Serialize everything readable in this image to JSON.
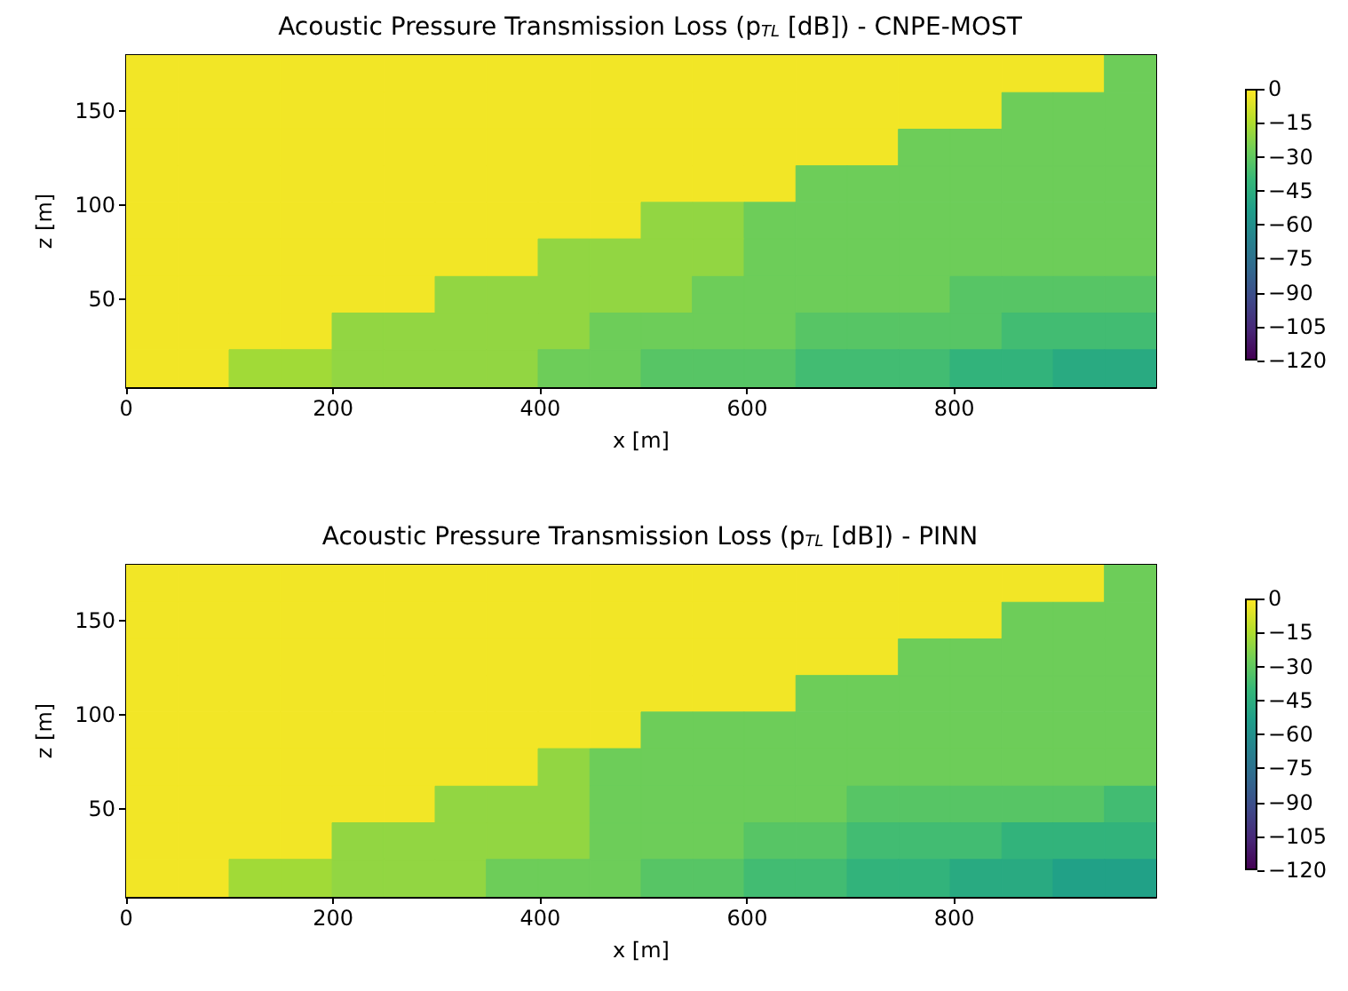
{
  "chart_data": [
    {
      "type": "heatmap",
      "title": "Acoustic Pressure Transmission Loss (p$_{TL}$ [dB]) - CNPE-MOST",
      "xlabel": "x [m]",
      "ylabel": "z [m]",
      "x": [
        25,
        75,
        124,
        174,
        224,
        274,
        323,
        373,
        423,
        473,
        522,
        572,
        622,
        672,
        721,
        771,
        821,
        871,
        920,
        970
      ],
      "y": [
        170,
        150,
        131,
        111,
        92,
        72,
        52,
        33,
        13
      ],
      "cells": [
        [
          -2,
          -2,
          -2,
          -2,
          -2,
          -2,
          -2,
          -2,
          -2,
          -2,
          -2,
          -2,
          -2,
          -2,
          -2,
          -2,
          -2,
          -2,
          -2,
          -27
        ],
        [
          -2,
          -2,
          -2,
          -2,
          -2,
          -2,
          -2,
          -2,
          -2,
          -2,
          -2,
          -2,
          -2,
          -2,
          -2,
          -2,
          -2,
          -27,
          -27,
          -27
        ],
        [
          -2,
          -2,
          -2,
          -2,
          -2,
          -2,
          -2,
          -2,
          -2,
          -2,
          -2,
          -2,
          -2,
          -2,
          -2,
          -27,
          -27,
          -27,
          -27,
          -27
        ],
        [
          -2,
          -2,
          -2,
          -2,
          -2,
          -2,
          -2,
          -2,
          -2,
          -2,
          -2,
          -2,
          -2,
          -27,
          -27,
          -27,
          -27,
          -27,
          -27,
          -27
        ],
        [
          -2,
          -2,
          -2,
          -2,
          -2,
          -2,
          -2,
          -2,
          -2,
          -2,
          -20,
          -20,
          -27,
          -27,
          -27,
          -27,
          -27,
          -27,
          -27,
          -27
        ],
        [
          -2,
          -2,
          -2,
          -2,
          -2,
          -2,
          -2,
          -2,
          -20,
          -20,
          -20,
          -20,
          -27,
          -27,
          -27,
          -27,
          -27,
          -27,
          -27,
          -27
        ],
        [
          -2,
          -2,
          -2,
          -2,
          -2,
          -2,
          -20,
          -20,
          -20,
          -20,
          -20,
          -27,
          -27,
          -27,
          -27,
          -27,
          -32,
          -32,
          -32,
          -32
        ],
        [
          -2,
          -2,
          -2,
          -2,
          -20,
          -20,
          -20,
          -20,
          -20,
          -27,
          -27,
          -27,
          -27,
          -32,
          -32,
          -32,
          -32,
          -37,
          -37,
          -37
        ],
        [
          -2,
          -2,
          -17,
          -17,
          -20,
          -20,
          -20,
          -20,
          -27,
          -27,
          -32,
          -32,
          -32,
          -37,
          -37,
          -37,
          -42,
          -42,
          -47,
          -47
        ]
      ],
      "clim": [
        -120,
        0
      ],
      "cticks": [
        0,
        {
          "value": -15,
          "label": "−15"
        },
        {
          "value": -30,
          "label": "−30"
        },
        {
          "value": -45,
          "label": "−45"
        },
        {
          "value": -60,
          "label": "−60"
        },
        {
          "value": -75,
          "label": "−75"
        },
        {
          "value": -90,
          "label": "−90"
        },
        {
          "value": -105,
          "label": "−105"
        },
        {
          "value": -120,
          "label": "−120"
        }
      ],
      "xlim": [
        0,
        995
      ],
      "xticks": [
        0,
        200,
        400,
        600,
        800
      ],
      "ylim": [
        3,
        180
      ],
      "yticks": [
        50,
        100,
        150
      ]
    },
    {
      "type": "heatmap",
      "title": "Acoustic Pressure Transmission Loss (p$_{TL}$ [dB]) - PINN",
      "xlabel": "x [m]",
      "ylabel": "z [m]",
      "x": [
        25,
        75,
        124,
        174,
        224,
        274,
        323,
        373,
        423,
        473,
        522,
        572,
        622,
        672,
        721,
        771,
        821,
        871,
        920,
        970
      ],
      "y": [
        170,
        150,
        131,
        111,
        92,
        72,
        52,
        33,
        13
      ],
      "cells": [
        [
          -2,
          -2,
          -2,
          -2,
          -2,
          -2,
          -2,
          -2,
          -2,
          -2,
          -2,
          -2,
          -2,
          -2,
          -2,
          -2,
          -2,
          -2,
          -2,
          -27
        ],
        [
          -2,
          -2,
          -2,
          -2,
          -2,
          -2,
          -2,
          -2,
          -2,
          -2,
          -2,
          -2,
          -2,
          -2,
          -2,
          -2,
          -2,
          -27,
          -27,
          -27
        ],
        [
          -2,
          -2,
          -2,
          -2,
          -2,
          -2,
          -2,
          -2,
          -2,
          -2,
          -2,
          -2,
          -2,
          -2,
          -2,
          -27,
          -27,
          -27,
          -27,
          -27
        ],
        [
          -2,
          -2,
          -2,
          -2,
          -2,
          -2,
          -2,
          -2,
          -2,
          -2,
          -2,
          -2,
          -2,
          -27,
          -27,
          -27,
          -27,
          -27,
          -27,
          -27
        ],
        [
          -2,
          -2,
          -2,
          -2,
          -2,
          -2,
          -2,
          -2,
          -2,
          -2,
          -27,
          -27,
          -27,
          -27,
          -27,
          -27,
          -27,
          -27,
          -27,
          -27
        ],
        [
          -2,
          -2,
          -2,
          -2,
          -2,
          -2,
          -2,
          -2,
          -20,
          -27,
          -27,
          -27,
          -27,
          -27,
          -27,
          -27,
          -27,
          -27,
          -27,
          -27
        ],
        [
          -2,
          -2,
          -2,
          -2,
          -2,
          -2,
          -20,
          -20,
          -20,
          -27,
          -27,
          -27,
          -27,
          -27,
          -32,
          -32,
          -32,
          -32,
          -32,
          -37
        ],
        [
          -2,
          -2,
          -2,
          -2,
          -20,
          -20,
          -20,
          -20,
          -20,
          -27,
          -27,
          -27,
          -32,
          -32,
          -37,
          -37,
          -37,
          -42,
          -42,
          -42
        ],
        [
          -2,
          -2,
          -17,
          -17,
          -20,
          -20,
          -20,
          -27,
          -27,
          -27,
          -32,
          -32,
          -37,
          -37,
          -42,
          -42,
          -47,
          -47,
          -52,
          -52
        ]
      ],
      "clim": [
        -120,
        0
      ],
      "cticks": [
        0,
        {
          "value": -15,
          "label": "−15"
        },
        {
          "value": -30,
          "label": "−30"
        },
        {
          "value": -45,
          "label": "−45"
        },
        {
          "value": -60,
          "label": "−60"
        },
        {
          "value": -75,
          "label": "−75"
        },
        {
          "value": -90,
          "label": "−90"
        },
        {
          "value": -105,
          "label": "−105"
        },
        {
          "value": -120,
          "label": "−120"
        }
      ],
      "xlim": [
        0,
        995
      ],
      "xticks": [
        0,
        200,
        400,
        600,
        800
      ],
      "ylim": [
        3,
        180
      ],
      "yticks": [
        50,
        100,
        150
      ]
    }
  ]
}
